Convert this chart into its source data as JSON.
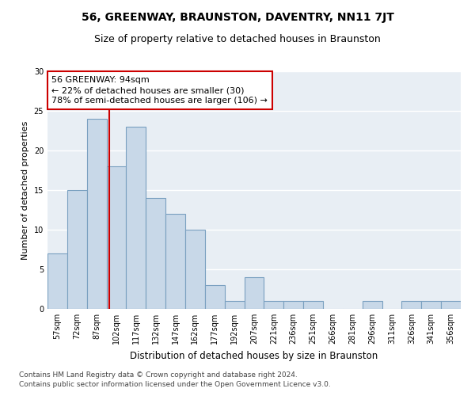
{
  "title": "56, GREENWAY, BRAUNSTON, DAVENTRY, NN11 7JT",
  "subtitle": "Size of property relative to detached houses in Braunston",
  "xlabel": "Distribution of detached houses by size in Braunston",
  "ylabel": "Number of detached properties",
  "categories": [
    "57sqm",
    "72sqm",
    "87sqm",
    "102sqm",
    "117sqm",
    "132sqm",
    "147sqm",
    "162sqm",
    "177sqm",
    "192sqm",
    "207sqm",
    "221sqm",
    "236sqm",
    "251sqm",
    "266sqm",
    "281sqm",
    "296sqm",
    "311sqm",
    "326sqm",
    "341sqm",
    "356sqm"
  ],
  "values": [
    7,
    15,
    24,
    18,
    23,
    14,
    12,
    10,
    3,
    1,
    4,
    1,
    1,
    1,
    0,
    0,
    1,
    0,
    1,
    1,
    1
  ],
  "bar_color": "#c8d8e8",
  "bar_edgecolor": "#7aa0c0",
  "bar_linewidth": 0.8,
  "vline_x_index": 2.65,
  "vline_color": "#cc0000",
  "annotation_text": "56 GREENWAY: 94sqm\n← 22% of detached houses are smaller (30)\n78% of semi-detached houses are larger (106) →",
  "annotation_box_edgecolor": "#cc0000",
  "ylim": [
    0,
    30
  ],
  "yticks": [
    0,
    5,
    10,
    15,
    20,
    25,
    30
  ],
  "background_color": "#e8eef4",
  "grid_color": "#ffffff",
  "footer_line1": "Contains HM Land Registry data © Crown copyright and database right 2024.",
  "footer_line2": "Contains public sector information licensed under the Open Government Licence v3.0.",
  "title_fontsize": 10,
  "subtitle_fontsize": 9,
  "xlabel_fontsize": 8.5,
  "ylabel_fontsize": 8,
  "tick_fontsize": 7,
  "annotation_fontsize": 8,
  "footer_fontsize": 6.5
}
